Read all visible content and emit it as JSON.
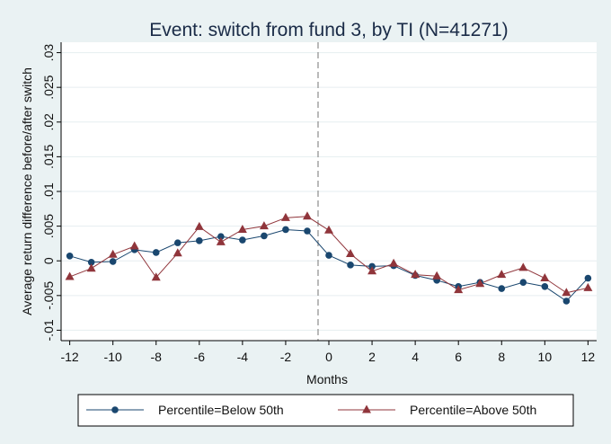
{
  "chart_data": {
    "type": "line",
    "title": "Event: switch from fund 3, by TI (N=41271)",
    "xlabel": "Months",
    "ylabel": "Average return difference before/after switch",
    "xlim": [
      -12.4,
      12.4
    ],
    "ylim": [
      -0.0115,
      0.0315
    ],
    "x_ticks": [
      -12,
      -10,
      -8,
      -6,
      -4,
      -2,
      0,
      2,
      4,
      6,
      8,
      10,
      12
    ],
    "x_tick_labels": [
      "-12",
      "-10",
      "-8",
      "-6",
      "-4",
      "-2",
      "0",
      "2",
      "4",
      "6",
      "8",
      "10",
      "12"
    ],
    "y_ticks": [
      -0.01,
      -0.005,
      0,
      0.005,
      0.01,
      0.015,
      0.02,
      0.025,
      0.03
    ],
    "y_tick_labels": [
      "-.01",
      "-.005",
      "0",
      ".005",
      ".01",
      ".015",
      ".02",
      ".025",
      ".03"
    ],
    "grid": true,
    "reference_line_x": -0.5,
    "legend_position": "bottom",
    "x": [
      -12,
      -11,
      -10,
      -9,
      -8,
      -7,
      -6,
      -5,
      -4,
      -3,
      -2,
      -1,
      0,
      1,
      2,
      3,
      4,
      5,
      6,
      7,
      8,
      9,
      10,
      11,
      12
    ],
    "series": [
      {
        "name": "Percentile=Below 50th",
        "color": "#1a476f",
        "marker": "circle",
        "values": [
          0.0007,
          -0.0002,
          -0.0001,
          0.0016,
          0.0012,
          0.0026,
          0.0029,
          0.0035,
          0.003,
          0.0036,
          0.0045,
          0.0043,
          0.0008,
          -0.0006,
          -0.0008,
          -0.0007,
          -0.0021,
          -0.0028,
          -0.0037,
          -0.0031,
          -0.004,
          -0.0031,
          -0.0037,
          -0.0058,
          -0.0025
        ]
      },
      {
        "name": "Percentile=Above 50th",
        "color": "#90353b",
        "marker": "triangle",
        "values": [
          -0.0023,
          -0.0011,
          0.0009,
          0.0021,
          -0.0024,
          0.0011,
          0.0049,
          0.0027,
          0.0045,
          0.005,
          0.0062,
          0.0064,
          0.0044,
          0.001,
          -0.0015,
          -0.0004,
          -0.002,
          -0.0022,
          -0.0042,
          -0.0033,
          -0.002,
          -0.001,
          -0.0025,
          -0.0046,
          -0.0039
        ]
      }
    ]
  }
}
